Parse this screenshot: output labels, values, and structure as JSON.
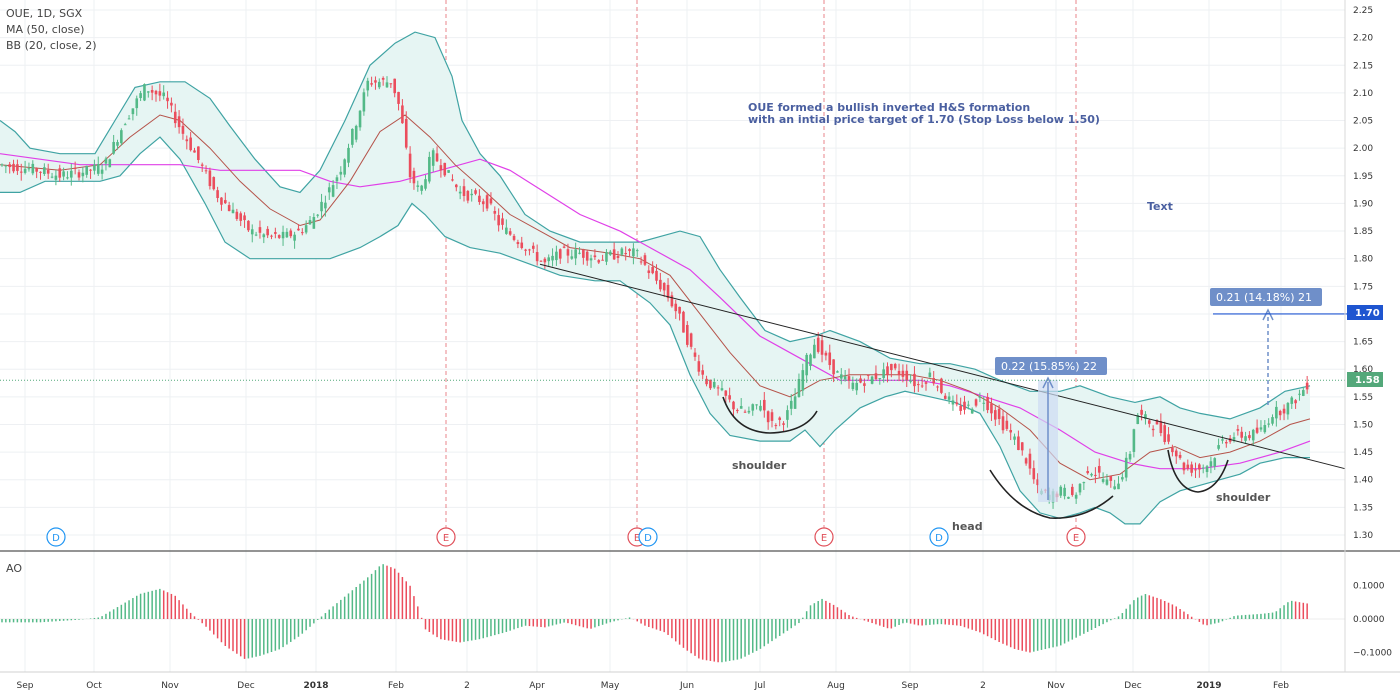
{
  "legend": {
    "line1": "OUE, 1D, SGX",
    "line2": "MA (50, close)",
    "line3": "BB (20, close, 2)",
    "ao": "AO"
  },
  "annotations": {
    "note_line1": "OUE formed a bullish inverted H&S formation",
    "note_line2": "with an intial price target of 1.70  (Stop Loss below 1.50)",
    "text_label": "Text",
    "shoulder_left": "shoulder",
    "head": "head",
    "shoulder_right": "shoulder",
    "measure1": "0.22 (15.85%) 22",
    "measure2": "0.21 (14.18%) 21"
  },
  "price_tags": {
    "target": "1.70",
    "last": "1.58"
  },
  "events": [
    {
      "t": 56,
      "kind": "D"
    },
    {
      "t": 446,
      "kind": "E"
    },
    {
      "t": 637,
      "kind": "E"
    },
    {
      "t": 648,
      "kind": "D"
    },
    {
      "t": 824,
      "kind": "E"
    },
    {
      "t": 939,
      "kind": "D"
    },
    {
      "t": 1076,
      "kind": "E"
    }
  ],
  "colors": {
    "up": "#53b987",
    "down": "#eb4d5c",
    "bb": "#3fa3a3",
    "bbfill": "#e6f5f3",
    "ma20": "#b5534a",
    "ma50": "#e040e8",
    "event_e": "#e0505a",
    "event_d": "#2196f3",
    "target_tag": "#1e55d0",
    "last_tag": "#53a87a",
    "measure": "#6f8fc9"
  },
  "chart_data": {
    "type": "candlestick",
    "price_axis": {
      "ticks": [
        "2.25",
        "2.20",
        "2.15",
        "2.10",
        "2.05",
        "2.00",
        "1.95",
        "1.90",
        "1.85",
        "1.80",
        "1.75",
        "1.70",
        "1.65",
        "1.60",
        "1.55",
        "1.50",
        "1.45",
        "1.40",
        "1.35",
        "1.30"
      ],
      "range": [
        1.275,
        2.265
      ]
    },
    "ao_axis": {
      "ticks": [
        "0.1000",
        "0.0000",
        "−0.1000"
      ],
      "values": [
        0.1,
        0,
        -0.1
      ],
      "range": [
        -0.135,
        0.17
      ]
    },
    "x_labels": [
      {
        "t": 25,
        "label": "Sep",
        "bold": false
      },
      {
        "t": 94,
        "label": "Oct",
        "bold": false
      },
      {
        "t": 170,
        "label": "Nov",
        "bold": false
      },
      {
        "t": 246,
        "label": "Dec",
        "bold": false
      },
      {
        "t": 316,
        "label": "2018",
        "bold": true
      },
      {
        "t": 396,
        "label": "Feb",
        "bold": false
      },
      {
        "t": 467,
        "label": "2",
        "bold": false
      },
      {
        "t": 537,
        "label": "Apr",
        "bold": false
      },
      {
        "t": 610,
        "label": "May",
        "bold": false
      },
      {
        "t": 687,
        "label": "Jun",
        "bold": false
      },
      {
        "t": 760,
        "label": "Jul",
        "bold": false
      },
      {
        "t": 836,
        "label": "Aug",
        "bold": false
      },
      {
        "t": 910,
        "label": "Sep",
        "bold": false
      },
      {
        "t": 983,
        "label": "2",
        "bold": false
      },
      {
        "t": 1056,
        "label": "Nov",
        "bold": false
      },
      {
        "t": 1133,
        "label": "Dec",
        "bold": false
      },
      {
        "t": 1209,
        "label": "2019",
        "bold": true
      },
      {
        "t": 1281,
        "label": "Feb",
        "bold": false
      }
    ],
    "close_path": [
      [
        0,
        1.97
      ],
      [
        40,
        1.96
      ],
      [
        60,
        1.95
      ],
      [
        90,
        1.96
      ],
      [
        105,
        1.97
      ],
      [
        125,
        2.05
      ],
      [
        145,
        2.11
      ],
      [
        165,
        2.09
      ],
      [
        182,
        2.03
      ],
      [
        195,
        1.99
      ],
      [
        215,
        1.92
      ],
      [
        235,
        1.88
      ],
      [
        250,
        1.85
      ],
      [
        268,
        1.84
      ],
      [
        285,
        1.84
      ],
      [
        300,
        1.85
      ],
      [
        312,
        1.87
      ],
      [
        325,
        1.91
      ],
      [
        340,
        1.96
      ],
      [
        355,
        2.04
      ],
      [
        368,
        2.12
      ],
      [
        380,
        2.12
      ],
      [
        392,
        2.12
      ],
      [
        400,
        2.07
      ],
      [
        410,
        1.95
      ],
      [
        420,
        1.92
      ],
      [
        432,
        1.99
      ],
      [
        445,
        1.96
      ],
      [
        460,
        1.92
      ],
      [
        475,
        1.91
      ],
      [
        488,
        1.9
      ],
      [
        500,
        1.86
      ],
      [
        520,
        1.83
      ],
      [
        545,
        1.79
      ],
      [
        560,
        1.81
      ],
      [
        580,
        1.81
      ],
      [
        600,
        1.8
      ],
      [
        620,
        1.81
      ],
      [
        636,
        1.81
      ],
      [
        648,
        1.78
      ],
      [
        665,
        1.74
      ],
      [
        678,
        1.7
      ],
      [
        690,
        1.64
      ],
      [
        705,
        1.58
      ],
      [
        720,
        1.56
      ],
      [
        735,
        1.53
      ],
      [
        748,
        1.52
      ],
      [
        760,
        1.54
      ],
      [
        772,
        1.5
      ],
      [
        785,
        1.51
      ],
      [
        795,
        1.55
      ],
      [
        805,
        1.61
      ],
      [
        815,
        1.65
      ],
      [
        825,
        1.62
      ],
      [
        838,
        1.59
      ],
      [
        852,
        1.57
      ],
      [
        865,
        1.58
      ],
      [
        880,
        1.59
      ],
      [
        890,
        1.6
      ],
      [
        905,
        1.59
      ],
      [
        918,
        1.57
      ],
      [
        930,
        1.59
      ],
      [
        942,
        1.56
      ],
      [
        955,
        1.53
      ],
      [
        968,
        1.53
      ],
      [
        982,
        1.55
      ],
      [
        998,
        1.51
      ],
      [
        1012,
        1.48
      ],
      [
        1025,
        1.44
      ],
      [
        1038,
        1.38
      ],
      [
        1050,
        1.37
      ],
      [
        1062,
        1.38
      ],
      [
        1075,
        1.37
      ],
      [
        1088,
        1.42
      ],
      [
        1098,
        1.41
      ],
      [
        1110,
        1.39
      ],
      [
        1120,
        1.4
      ],
      [
        1130,
        1.45
      ],
      [
        1136,
        1.52
      ],
      [
        1145,
        1.51
      ],
      [
        1160,
        1.49
      ],
      [
        1172,
        1.46
      ],
      [
        1185,
        1.42
      ],
      [
        1198,
        1.42
      ],
      [
        1210,
        1.43
      ],
      [
        1222,
        1.47
      ],
      [
        1235,
        1.48
      ],
      [
        1250,
        1.48
      ],
      [
        1262,
        1.49
      ],
      [
        1272,
        1.52
      ],
      [
        1285,
        1.53
      ],
      [
        1298,
        1.55
      ],
      [
        1310,
        1.58
      ]
    ],
    "ma50_path": [
      [
        0,
        1.99
      ],
      [
        40,
        1.98
      ],
      [
        80,
        1.97
      ],
      [
        100,
        1.97
      ],
      [
        140,
        1.97
      ],
      [
        180,
        1.97
      ],
      [
        220,
        1.96
      ],
      [
        260,
        1.96
      ],
      [
        300,
        1.96
      ],
      [
        330,
        1.94
      ],
      [
        360,
        1.93
      ],
      [
        400,
        1.94
      ],
      [
        440,
        1.96
      ],
      [
        480,
        1.98
      ],
      [
        510,
        1.96
      ],
      [
        545,
        1.92
      ],
      [
        580,
        1.88
      ],
      [
        620,
        1.85
      ],
      [
        650,
        1.82
      ],
      [
        690,
        1.78
      ],
      [
        720,
        1.73
      ],
      [
        760,
        1.66
      ],
      [
        800,
        1.62
      ],
      [
        840,
        1.58
      ],
      [
        880,
        1.58
      ],
      [
        920,
        1.58
      ],
      [
        950,
        1.57
      ],
      [
        985,
        1.55
      ],
      [
        1020,
        1.53
      ],
      [
        1060,
        1.49
      ],
      [
        1095,
        1.45
      ],
      [
        1130,
        1.43
      ],
      [
        1160,
        1.42
      ],
      [
        1200,
        1.42
      ],
      [
        1240,
        1.43
      ],
      [
        1280,
        1.45
      ],
      [
        1310,
        1.47
      ]
    ],
    "ma20_path": [
      [
        0,
        1.97
      ],
      [
        60,
        1.96
      ],
      [
        100,
        1.97
      ],
      [
        130,
        2.02
      ],
      [
        160,
        2.06
      ],
      [
        180,
        2.05
      ],
      [
        210,
        2.0
      ],
      [
        240,
        1.94
      ],
      [
        270,
        1.89
      ],
      [
        300,
        1.86
      ],
      [
        320,
        1.87
      ],
      [
        350,
        1.94
      ],
      [
        380,
        2.03
      ],
      [
        405,
        2.06
      ],
      [
        430,
        2.02
      ],
      [
        455,
        1.97
      ],
      [
        480,
        1.93
      ],
      [
        510,
        1.88
      ],
      [
        540,
        1.85
      ],
      [
        570,
        1.82
      ],
      [
        610,
        1.81
      ],
      [
        640,
        1.8
      ],
      [
        670,
        1.77
      ],
      [
        700,
        1.7
      ],
      [
        730,
        1.63
      ],
      [
        760,
        1.57
      ],
      [
        790,
        1.55
      ],
      [
        820,
        1.58
      ],
      [
        850,
        1.59
      ],
      [
        880,
        1.59
      ],
      [
        910,
        1.59
      ],
      [
        940,
        1.58
      ],
      [
        970,
        1.56
      ],
      [
        1000,
        1.53
      ],
      [
        1030,
        1.49
      ],
      [
        1060,
        1.43
      ],
      [
        1090,
        1.4
      ],
      [
        1120,
        1.41
      ],
      [
        1150,
        1.45
      ],
      [
        1175,
        1.46
      ],
      [
        1200,
        1.44
      ],
      [
        1230,
        1.45
      ],
      [
        1260,
        1.47
      ],
      [
        1290,
        1.5
      ],
      [
        1310,
        1.51
      ]
    ],
    "bb_upper_path": [
      [
        0,
        2.05
      ],
      [
        15,
        2.03
      ],
      [
        30,
        2.0
      ],
      [
        60,
        1.99
      ],
      [
        95,
        1.99
      ],
      [
        115,
        2.05
      ],
      [
        135,
        2.11
      ],
      [
        160,
        2.12
      ],
      [
        185,
        2.12
      ],
      [
        210,
        2.09
      ],
      [
        230,
        2.04
      ],
      [
        255,
        1.98
      ],
      [
        280,
        1.93
      ],
      [
        300,
        1.92
      ],
      [
        320,
        1.96
      ],
      [
        345,
        2.05
      ],
      [
        370,
        2.15
      ],
      [
        395,
        2.19
      ],
      [
        415,
        2.21
      ],
      [
        435,
        2.2
      ],
      [
        452,
        2.13
      ],
      [
        462,
        2.05
      ],
      [
        480,
        1.99
      ],
      [
        500,
        1.95
      ],
      [
        525,
        1.88
      ],
      [
        550,
        1.85
      ],
      [
        580,
        1.83
      ],
      [
        610,
        1.83
      ],
      [
        640,
        1.83
      ],
      [
        660,
        1.84
      ],
      [
        680,
        1.85
      ],
      [
        700,
        1.84
      ],
      [
        720,
        1.78
      ],
      [
        740,
        1.73
      ],
      [
        765,
        1.67
      ],
      [
        790,
        1.65
      ],
      [
        815,
        1.66
      ],
      [
        830,
        1.67
      ],
      [
        860,
        1.65
      ],
      [
        890,
        1.62
      ],
      [
        920,
        1.61
      ],
      [
        950,
        1.61
      ],
      [
        975,
        1.6
      ],
      [
        1000,
        1.58
      ],
      [
        1030,
        1.56
      ],
      [
        1060,
        1.56
      ],
      [
        1080,
        1.57
      ],
      [
        1110,
        1.55
      ],
      [
        1135,
        1.54
      ],
      [
        1160,
        1.55
      ],
      [
        1180,
        1.53
      ],
      [
        1200,
        1.52
      ],
      [
        1230,
        1.51
      ],
      [
        1260,
        1.53
      ],
      [
        1285,
        1.56
      ],
      [
        1310,
        1.57
      ]
    ],
    "bb_lower_path": [
      [
        0,
        1.92
      ],
      [
        20,
        1.92
      ],
      [
        45,
        1.94
      ],
      [
        80,
        1.94
      ],
      [
        100,
        1.94
      ],
      [
        120,
        1.95
      ],
      [
        140,
        1.99
      ],
      [
        160,
        2.02
      ],
      [
        180,
        1.98
      ],
      [
        205,
        1.9
      ],
      [
        225,
        1.83
      ],
      [
        250,
        1.8
      ],
      [
        275,
        1.8
      ],
      [
        300,
        1.8
      ],
      [
        330,
        1.8
      ],
      [
        360,
        1.82
      ],
      [
        380,
        1.84
      ],
      [
        398,
        1.86
      ],
      [
        412,
        1.9
      ],
      [
        425,
        1.88
      ],
      [
        445,
        1.84
      ],
      [
        470,
        1.82
      ],
      [
        500,
        1.81
      ],
      [
        530,
        1.79
      ],
      [
        560,
        1.77
      ],
      [
        595,
        1.76
      ],
      [
        620,
        1.76
      ],
      [
        650,
        1.72
      ],
      [
        670,
        1.68
      ],
      [
        690,
        1.59
      ],
      [
        710,
        1.52
      ],
      [
        730,
        1.48
      ],
      [
        760,
        1.47
      ],
      [
        790,
        1.47
      ],
      [
        805,
        1.49
      ],
      [
        820,
        1.46
      ],
      [
        835,
        1.49
      ],
      [
        860,
        1.53
      ],
      [
        885,
        1.55
      ],
      [
        905,
        1.56
      ],
      [
        930,
        1.55
      ],
      [
        955,
        1.54
      ],
      [
        980,
        1.52
      ],
      [
        1000,
        1.46
      ],
      [
        1020,
        1.38
      ],
      [
        1040,
        1.34
      ],
      [
        1060,
        1.33
      ],
      [
        1080,
        1.34
      ],
      [
        1095,
        1.35
      ],
      [
        1110,
        1.34
      ],
      [
        1125,
        1.32
      ],
      [
        1140,
        1.32
      ],
      [
        1160,
        1.36
      ],
      [
        1180,
        1.38
      ],
      [
        1200,
        1.39
      ],
      [
        1220,
        1.4
      ],
      [
        1240,
        1.41
      ],
      [
        1260,
        1.43
      ],
      [
        1285,
        1.44
      ],
      [
        1310,
        1.44
      ]
    ],
    "ao_path": [
      [
        0,
        -0.01
      ],
      [
        40,
        -0.01
      ],
      [
        80,
        -0.002
      ],
      [
        100,
        0.005
      ],
      [
        120,
        0.04
      ],
      [
        140,
        0.075
      ],
      [
        160,
        0.09
      ],
      [
        175,
        0.07
      ],
      [
        190,
        0.02
      ],
      [
        205,
        -0.02
      ],
      [
        225,
        -0.08
      ],
      [
        245,
        -0.12
      ],
      [
        260,
        -0.11
      ],
      [
        280,
        -0.09
      ],
      [
        300,
        -0.05
      ],
      [
        315,
        -0.01
      ],
      [
        330,
        0.03
      ],
      [
        350,
        0.08
      ],
      [
        370,
        0.13
      ],
      [
        382,
        0.165
      ],
      [
        395,
        0.15
      ],
      [
        410,
        0.1
      ],
      [
        420,
        0.02
      ],
      [
        425,
        -0.03
      ],
      [
        440,
        -0.06
      ],
      [
        460,
        -0.07
      ],
      [
        480,
        -0.06
      ],
      [
        505,
        -0.04
      ],
      [
        525,
        -0.02
      ],
      [
        545,
        -0.025
      ],
      [
        565,
        -0.01
      ],
      [
        590,
        -0.03
      ],
      [
        610,
        -0.01
      ],
      [
        630,
        0.005
      ],
      [
        645,
        -0.02
      ],
      [
        665,
        -0.04
      ],
      [
        685,
        -0.09
      ],
      [
        700,
        -0.12
      ],
      [
        720,
        -0.13
      ],
      [
        740,
        -0.12
      ],
      [
        760,
        -0.09
      ],
      [
        780,
        -0.05
      ],
      [
        800,
        -0.01
      ],
      [
        810,
        0.04
      ],
      [
        822,
        0.06
      ],
      [
        835,
        0.04
      ],
      [
        850,
        0.01
      ],
      [
        870,
        -0.01
      ],
      [
        890,
        -0.03
      ],
      [
        905,
        -0.01
      ],
      [
        920,
        -0.02
      ],
      [
        940,
        -0.015
      ],
      [
        960,
        -0.02
      ],
      [
        980,
        -0.04
      ],
      [
        1000,
        -0.07
      ],
      [
        1015,
        -0.09
      ],
      [
        1030,
        -0.1
      ],
      [
        1045,
        -0.09
      ],
      [
        1060,
        -0.08
      ],
      [
        1080,
        -0.05
      ],
      [
        1100,
        -0.02
      ],
      [
        1120,
        0.01
      ],
      [
        1135,
        0.06
      ],
      [
        1145,
        0.075
      ],
      [
        1160,
        0.06
      ],
      [
        1175,
        0.04
      ],
      [
        1190,
        0.01
      ],
      [
        1205,
        -0.02
      ],
      [
        1220,
        -0.01
      ],
      [
        1235,
        0.01
      ],
      [
        1260,
        0.015
      ],
      [
        1275,
        0.02
      ],
      [
        1290,
        0.055
      ],
      [
        1300,
        0.05
      ],
      [
        1310,
        0.045
      ]
    ]
  }
}
